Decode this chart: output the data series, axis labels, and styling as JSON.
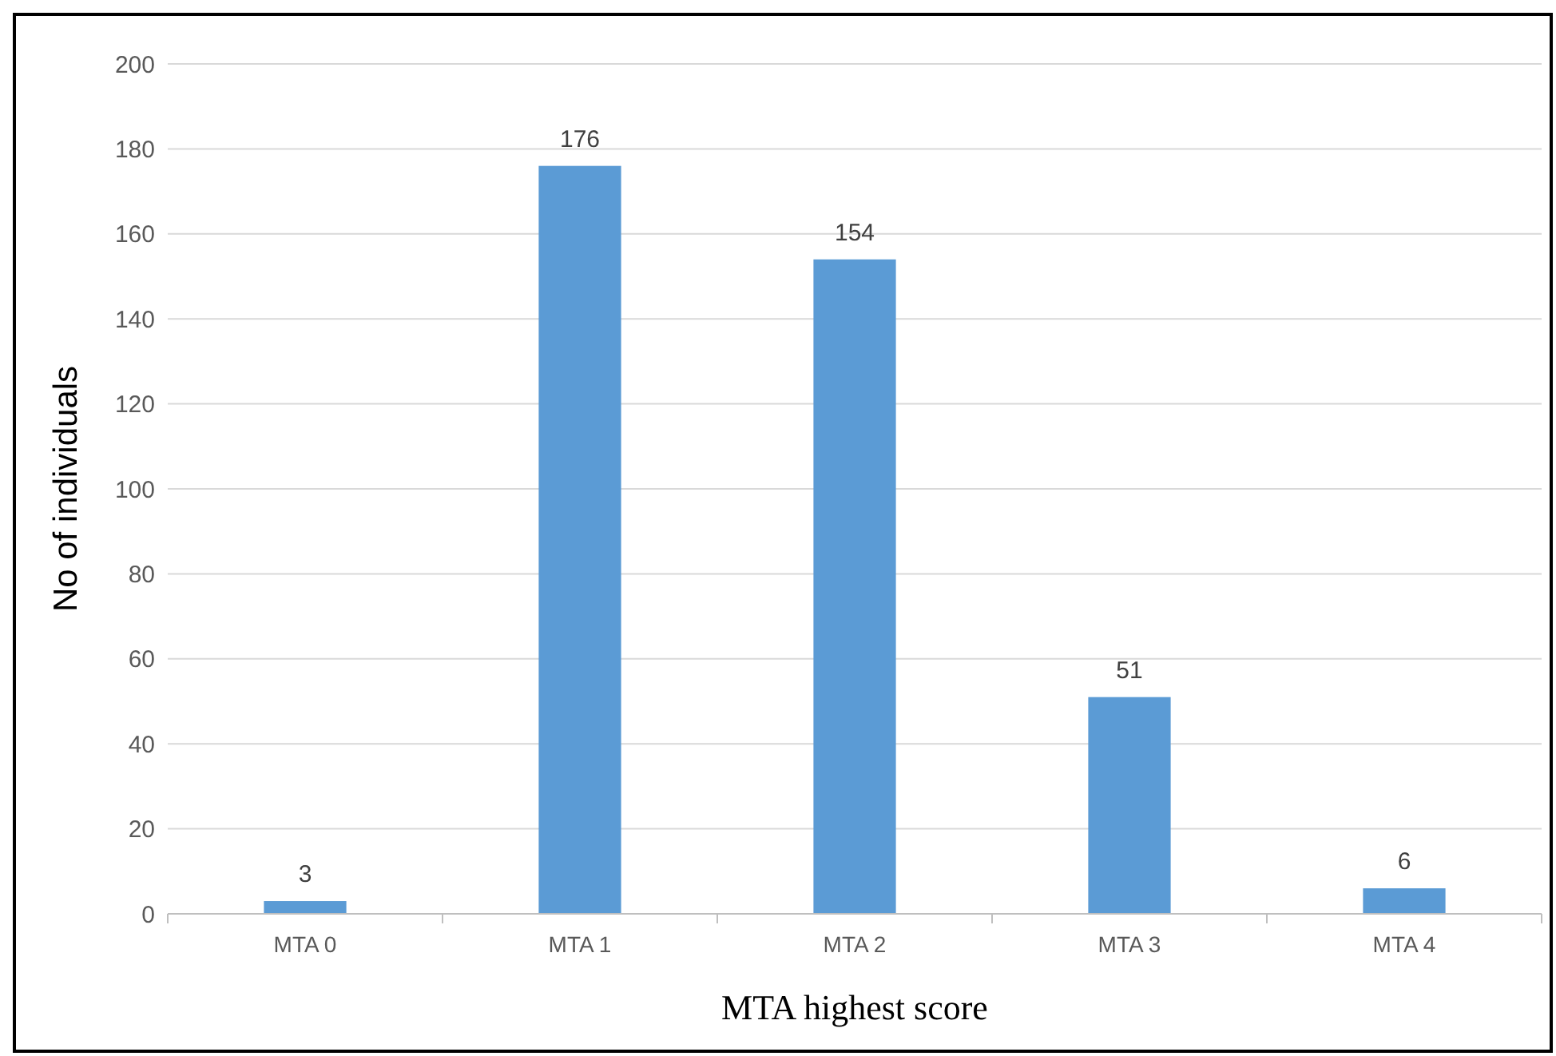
{
  "chart_data": {
    "type": "bar",
    "xlabel": "MTA highest score",
    "ylabel": "No of individuals",
    "categories": [
      "MTA 0",
      "MTA 1",
      "MTA 2",
      "MTA 3",
      "MTA 4"
    ],
    "values": [
      3,
      176,
      154,
      51,
      6
    ],
    "color": "#5b9bd5",
    "ylim": [
      0,
      200
    ],
    "yticks": [
      0,
      20,
      40,
      60,
      80,
      100,
      120,
      140,
      160,
      180,
      200
    ],
    "grid": "y",
    "data_labels": true
  }
}
